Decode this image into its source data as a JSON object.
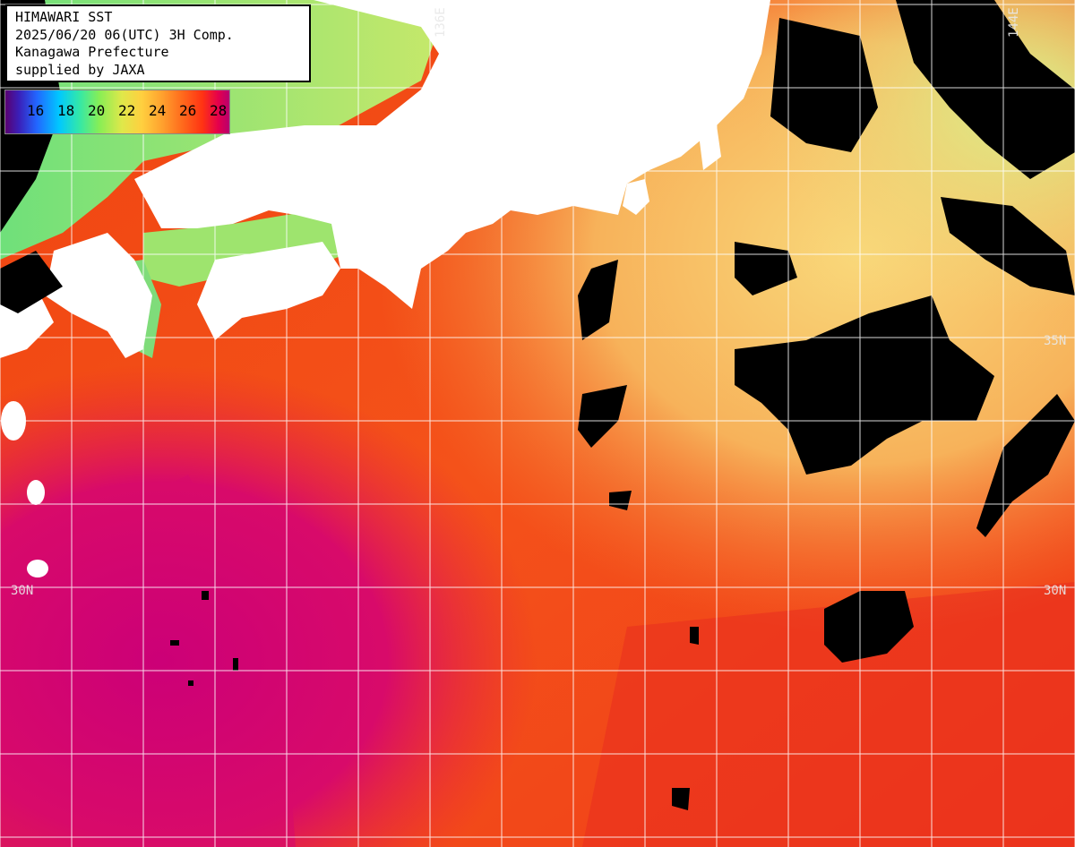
{
  "info": {
    "line1": "HIMAWARI SST",
    "line2": "2025/06/20 06(UTC) 3H Comp.",
    "line3": "Kanagawa Prefecture",
    "line4": "supplied by JAXA"
  },
  "legend": {
    "labels": [
      "16",
      "18",
      "20",
      "22",
      "24",
      "26",
      "28"
    ]
  },
  "grid_labels": {
    "lat_30_left": "30N",
    "lat_30_right": "30N",
    "lat_35_right": "35N",
    "lon_136": "136E",
    "lon_144": "144E"
  },
  "colors": {
    "land": "#ffffff",
    "cloud": "#000000",
    "grid": "#ffffff"
  }
}
